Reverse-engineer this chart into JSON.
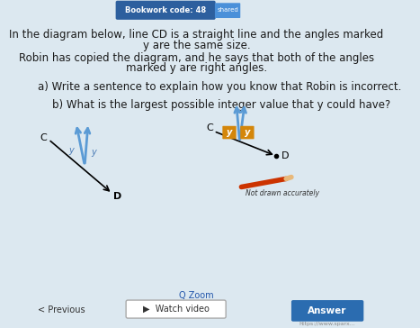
{
  "bg_color": "#dce8f0",
  "bookwork_text": "Bookwork code: 48",
  "line1a": "In the diagram below, line ",
  "line1b": "CD",
  "line1c": " is a straight line and the angles marked",
  "line2": "y are the same size.",
  "line3": "Robin has copied the diagram, and he says that both of the angles",
  "line4": "marked y are right angles.",
  "qa_text": "a) Write a sentence to explain how you know that Robin is incorrect.",
  "qb_text": "b) What is the largest possible integer value that y could have?",
  "text_color": "#1a1a1a",
  "blue_arrow": "#5b9bd5",
  "y_label_color": "#4a7ab5",
  "y_box_color": "#d4860a",
  "not_drawn_text": "Not drawn accurately",
  "bottom_zoom_text": "Zoom",
  "bottom_watch_text": "Watch video",
  "answer_btn_color": "#2b6cb0",
  "answer_text": "Answer",
  "prev_text": "< Previous",
  "url_text": "https://www.sparx..."
}
